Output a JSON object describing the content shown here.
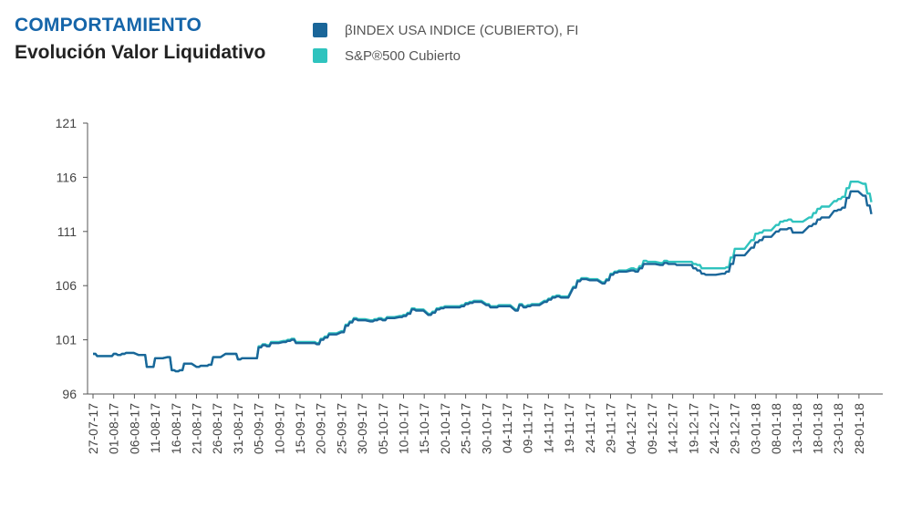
{
  "header": {
    "title": "COMPORTAMIENTO",
    "subtitle": "Evolución Valor Liquidativo"
  },
  "legend": [
    {
      "label": "βINDEX USA INDICE (CUBIERTO), FI",
      "color": "#1a6699"
    },
    {
      "label": "S&P®500 Cubierto",
      "color": "#2fc3be"
    }
  ],
  "chart_data": {
    "type": "line",
    "title": "Evolución Valor Liquidativo",
    "xlabel": "",
    "ylabel": "",
    "ylim": [
      96,
      121
    ],
    "yticks": [
      96,
      101,
      106,
      111,
      116,
      121
    ],
    "grid": false,
    "legend_position": "top",
    "xticks": [
      "27-07-17",
      "01-08-17",
      "06-08-17",
      "11-08-17",
      "16-08-17",
      "21-08-17",
      "26-08-17",
      "31-08-17",
      "05-09-17",
      "10-09-17",
      "15-09-17",
      "20-09-17",
      "25-09-17",
      "30-09-17",
      "05-10-17",
      "10-10-17",
      "15-10-17",
      "20-10-17",
      "25-10-17",
      "30-10-17",
      "04-11-17",
      "09-11-17",
      "14-11-17",
      "19-11-17",
      "24-11-17",
      "29-11-17",
      "04-12-17",
      "09-12-17",
      "14-12-17",
      "19-12-17",
      "24-12-17",
      "29-12-17",
      "03-01-18",
      "08-01-18",
      "13-01-18",
      "18-01-18",
      "23-01-18",
      "28-01-18"
    ],
    "series": [
      {
        "name": "βINDEX USA INDICE (CUBIERTO), FI",
        "color": "#1a6699",
        "x": [
          "27-07-17",
          "28-07-17",
          "31-07-17",
          "01-08-17",
          "02-08-17",
          "03-08-17",
          "04-08-17",
          "07-08-17",
          "08-08-17",
          "09-08-17",
          "10-08-17",
          "11-08-17",
          "14-08-17",
          "15-08-17",
          "16-08-17",
          "17-08-17",
          "18-08-17",
          "21-08-17",
          "22-08-17",
          "23-08-17",
          "24-08-17",
          "25-08-17",
          "28-08-17",
          "29-08-17",
          "30-08-17",
          "31-08-17",
          "01-09-17",
          "04-09-17",
          "05-09-17",
          "06-09-17",
          "07-09-17",
          "08-09-17",
          "11-09-17",
          "12-09-17",
          "13-09-17",
          "14-09-17",
          "15-09-17",
          "18-09-17",
          "19-09-17",
          "20-09-17",
          "21-09-17",
          "22-09-17",
          "25-09-17",
          "26-09-17",
          "27-09-17",
          "28-09-17",
          "29-09-17",
          "02-10-17",
          "03-10-17",
          "04-10-17",
          "05-10-17",
          "06-10-17",
          "09-10-17",
          "10-10-17",
          "11-10-17",
          "12-10-17",
          "13-10-17",
          "16-10-17",
          "17-10-17",
          "18-10-17",
          "19-10-17",
          "20-10-17",
          "23-10-17",
          "24-10-17",
          "25-10-17",
          "26-10-17",
          "27-10-17",
          "30-10-17",
          "31-10-17",
          "01-11-17",
          "02-11-17",
          "03-11-17",
          "06-11-17",
          "07-11-17",
          "08-11-17",
          "09-11-17",
          "10-11-17",
          "13-11-17",
          "14-11-17",
          "15-11-17",
          "16-11-17",
          "17-11-17",
          "20-11-17",
          "21-11-17",
          "22-11-17",
          "24-11-17",
          "27-11-17",
          "28-11-17",
          "29-11-17",
          "30-11-17",
          "01-12-17",
          "04-12-17",
          "05-12-17",
          "06-12-17",
          "07-12-17",
          "08-12-17",
          "11-12-17",
          "12-12-17",
          "13-12-17",
          "14-12-17",
          "15-12-17",
          "18-12-17",
          "19-12-17",
          "20-12-17",
          "21-12-17",
          "22-12-17",
          "26-12-17",
          "27-12-17",
          "28-12-17",
          "29-12-17",
          "02-01-18",
          "03-01-18",
          "04-01-18",
          "05-01-18",
          "08-01-18",
          "09-01-18",
          "10-01-18",
          "11-01-18",
          "12-01-18",
          "16-01-18",
          "17-01-18",
          "18-01-18",
          "19-01-18",
          "22-01-18",
          "23-01-18",
          "24-01-18",
          "25-01-18",
          "26-01-18",
          "29-01-18",
          "30-01-18",
          "31-01-18"
        ],
        "values": [
          99.7,
          99.5,
          99.5,
          99.7,
          99.6,
          99.7,
          99.8,
          99.6,
          99.6,
          98.5,
          98.5,
          99.3,
          99.4,
          98.2,
          98.1,
          98.2,
          98.8,
          98.5,
          98.6,
          98.6,
          98.7,
          99.4,
          99.7,
          99.7,
          99.7,
          99.2,
          99.3,
          99.3,
          100.3,
          100.5,
          100.4,
          100.7,
          100.8,
          100.9,
          101.0,
          100.7,
          100.7,
          100.7,
          100.6,
          101.0,
          101.2,
          101.5,
          101.7,
          102.3,
          102.6,
          102.9,
          102.8,
          102.7,
          102.8,
          102.9,
          102.8,
          103.0,
          103.1,
          103.2,
          103.4,
          103.8,
          103.7,
          103.3,
          103.5,
          103.8,
          103.9,
          104.0,
          104.0,
          104.1,
          104.3,
          104.4,
          104.5,
          104.2,
          104.0,
          104.0,
          104.1,
          104.1,
          103.7,
          104.2,
          104.0,
          104.1,
          104.2,
          104.5,
          104.7,
          104.9,
          105.0,
          104.9,
          105.8,
          106.4,
          106.6,
          106.5,
          106.2,
          106.5,
          107.0,
          107.2,
          107.3,
          107.4,
          107.3,
          107.6,
          108.0,
          108.0,
          107.9,
          108.1,
          108.0,
          108.0,
          107.9,
          107.9,
          107.6,
          107.4,
          107.1,
          107.0,
          107.1,
          107.3,
          108.0,
          108.8,
          109.5,
          110.0,
          110.2,
          110.5,
          111.0,
          111.2,
          111.2,
          111.3,
          110.9,
          111.5,
          111.7,
          112.1,
          112.3,
          112.9,
          113.0,
          113.2,
          114.1,
          114.7,
          114.3,
          113.4,
          112.6
        ]
      },
      {
        "name": "S&P®500 Cubierto",
        "color": "#2fc3be",
        "x": [
          "27-07-17",
          "28-07-17",
          "31-07-17",
          "01-08-17",
          "02-08-17",
          "03-08-17",
          "04-08-17",
          "07-08-17",
          "08-08-17",
          "09-08-17",
          "10-08-17",
          "11-08-17",
          "14-08-17",
          "15-08-17",
          "16-08-17",
          "17-08-17",
          "18-08-17",
          "21-08-17",
          "22-08-17",
          "23-08-17",
          "24-08-17",
          "25-08-17",
          "28-08-17",
          "29-08-17",
          "30-08-17",
          "31-08-17",
          "01-09-17",
          "04-09-17",
          "05-09-17",
          "06-09-17",
          "07-09-17",
          "08-09-17",
          "11-09-17",
          "12-09-17",
          "13-09-17",
          "14-09-17",
          "15-09-17",
          "18-09-17",
          "19-09-17",
          "20-09-17",
          "21-09-17",
          "22-09-17",
          "25-09-17",
          "26-09-17",
          "27-09-17",
          "28-09-17",
          "29-09-17",
          "02-10-17",
          "03-10-17",
          "04-10-17",
          "05-10-17",
          "06-10-17",
          "09-10-17",
          "10-10-17",
          "11-10-17",
          "12-10-17",
          "13-10-17",
          "16-10-17",
          "17-10-17",
          "18-10-17",
          "19-10-17",
          "20-10-17",
          "23-10-17",
          "24-10-17",
          "25-10-17",
          "26-10-17",
          "27-10-17",
          "30-10-17",
          "31-10-17",
          "01-11-17",
          "02-11-17",
          "03-11-17",
          "06-11-17",
          "07-11-17",
          "08-11-17",
          "09-11-17",
          "10-11-17",
          "13-11-17",
          "14-11-17",
          "15-11-17",
          "16-11-17",
          "17-11-17",
          "20-11-17",
          "21-11-17",
          "22-11-17",
          "24-11-17",
          "27-11-17",
          "28-11-17",
          "29-11-17",
          "30-11-17",
          "01-12-17",
          "04-12-17",
          "05-12-17",
          "06-12-17",
          "07-12-17",
          "08-12-17",
          "11-12-17",
          "12-12-17",
          "13-12-17",
          "14-12-17",
          "15-12-17",
          "18-12-17",
          "19-12-17",
          "20-12-17",
          "21-12-17",
          "22-12-17",
          "26-12-17",
          "27-12-17",
          "28-12-17",
          "29-12-17",
          "02-01-18",
          "03-01-18",
          "04-01-18",
          "05-01-18",
          "08-01-18",
          "09-01-18",
          "10-01-18",
          "11-01-18",
          "12-01-18",
          "16-01-18",
          "17-01-18",
          "18-01-18",
          "19-01-18",
          "22-01-18",
          "23-01-18",
          "24-01-18",
          "25-01-18",
          "26-01-18",
          "29-01-18",
          "30-01-18",
          "31-01-18"
        ],
        "values": [
          99.7,
          99.5,
          99.5,
          99.7,
          99.6,
          99.7,
          99.8,
          99.6,
          99.6,
          98.5,
          98.5,
          99.3,
          99.4,
          98.2,
          98.1,
          98.2,
          98.8,
          98.5,
          98.6,
          98.6,
          98.7,
          99.4,
          99.7,
          99.7,
          99.7,
          99.2,
          99.3,
          99.3,
          100.4,
          100.6,
          100.5,
          100.8,
          100.9,
          101.0,
          101.1,
          100.8,
          100.8,
          100.8,
          100.7,
          101.1,
          101.3,
          101.6,
          101.8,
          102.4,
          102.7,
          103.0,
          102.9,
          102.8,
          102.9,
          103.0,
          102.9,
          103.1,
          103.2,
          103.3,
          103.5,
          103.9,
          103.8,
          103.4,
          103.6,
          103.9,
          104.0,
          104.1,
          104.1,
          104.2,
          104.4,
          104.5,
          104.6,
          104.3,
          104.1,
          104.1,
          104.2,
          104.2,
          103.8,
          104.3,
          104.1,
          104.2,
          104.3,
          104.6,
          104.8,
          105.0,
          105.1,
          105.0,
          105.9,
          106.5,
          106.7,
          106.6,
          106.3,
          106.6,
          107.1,
          107.3,
          107.4,
          107.6,
          107.5,
          107.8,
          108.3,
          108.2,
          108.1,
          108.3,
          108.2,
          108.2,
          108.2,
          108.2,
          108.0,
          107.9,
          107.6,
          107.6,
          107.6,
          107.7,
          108.6,
          109.4,
          110.2,
          110.8,
          110.9,
          111.1,
          111.6,
          111.9,
          112.0,
          112.1,
          111.9,
          112.3,
          112.7,
          113.1,
          113.3,
          113.8,
          114.0,
          114.2,
          115.0,
          115.6,
          115.4,
          114.5,
          113.7
        ]
      }
    ]
  }
}
